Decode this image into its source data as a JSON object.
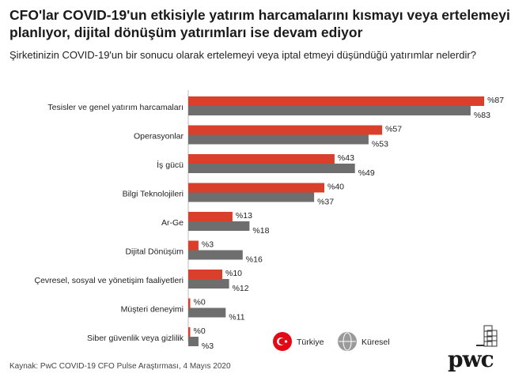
{
  "header": {
    "title": "CFO'lar COVID-19'un etkisiyle yatırım harcamalarını kısmayı veya ertelemeyi planlıyor, dijital dönüşüm yatırımları ise devam ediyor",
    "subtitle": "Şirketinizin COVID-19'un bir sonucu olarak  ertelemeyi veya iptal etmeyi düşündüğü yatırımlar nelerdir?"
  },
  "footer": {
    "source": "Kaynak: PwC COVID-19 CFO Pulse Araştırması, 4 Mayıs 2020",
    "logo_text": "pwc"
  },
  "chart_data": {
    "type": "bar",
    "orientation": "horizontal",
    "categories": [
      "Tesisler ve genel yatırım harcamaları",
      "Operasyonlar",
      "İş gücü",
      "Bilgi Teknolojileri",
      "Ar-Ge",
      "Dijital Dönüşüm",
      "Çevresel, sosyal ve yönetişim faaliyetleri",
      "Müşteri deneyimi",
      "Siber güvenlik veya gizlilik"
    ],
    "series": [
      {
        "name": "Türkiye",
        "color": "#d93f2a",
        "values": [
          87,
          57,
          43,
          40,
          13,
          3,
          10,
          0,
          0
        ],
        "labels": [
          "%87",
          "%57",
          "%43",
          "%40",
          "%13",
          "%3",
          "%10",
          "%0",
          "%0"
        ]
      },
      {
        "name": "Küresel",
        "color": "#6e6e6e",
        "values": [
          83,
          53,
          49,
          37,
          18,
          16,
          12,
          11,
          3
        ],
        "labels": [
          "%83",
          "%53",
          "%49",
          "%37",
          "%18",
          "%16",
          "%12",
          "%11",
          "%3"
        ]
      }
    ],
    "xlim": [
      0,
      87
    ],
    "legend": "bottom-right",
    "grid": false
  }
}
